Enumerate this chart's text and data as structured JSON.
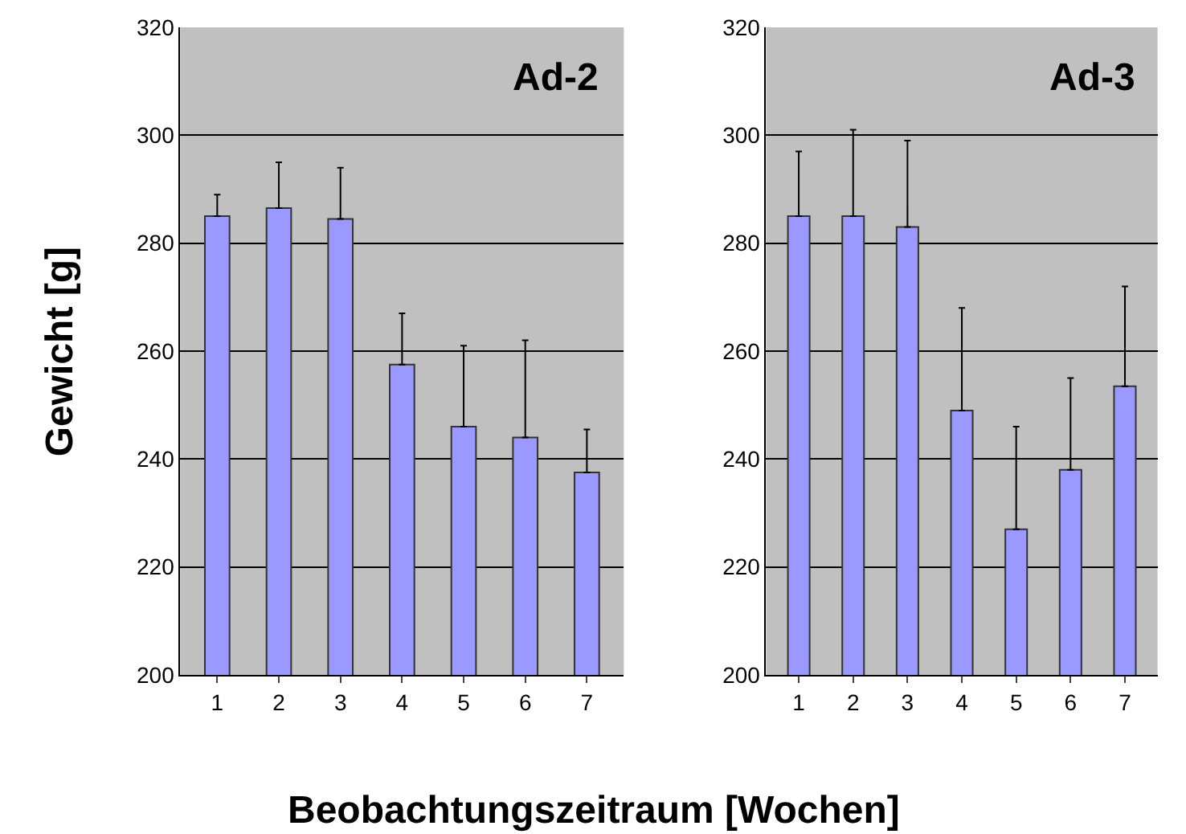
{
  "chart_data": [
    {
      "type": "bar",
      "annotations": [
        "Ad-2"
      ],
      "ylabel": "Gewicht [g]",
      "xlabel": "Beobachtungszeitraum [Wochen]",
      "categories": [
        "1",
        "2",
        "3",
        "4",
        "5",
        "6",
        "7"
      ],
      "series": [
        {
          "color": "#9999ff",
          "values": [
            285,
            286.5,
            284.5,
            257.5,
            246,
            244,
            237.5
          ],
          "errors": [
            [
              285,
              289
            ],
            [
              286.5,
              295
            ],
            [
              284.5,
              294
            ],
            [
              257.5,
              267
            ],
            [
              246,
              261
            ],
            [
              244,
              262
            ],
            [
              237.5,
              245.5
            ]
          ]
        }
      ],
      "ylim": [
        200,
        320
      ],
      "yticks": [
        200,
        220,
        240,
        260,
        280,
        300,
        320
      ],
      "grid": "y",
      "legend": false
    },
    {
      "type": "bar",
      "annotations": [
        "Ad-3"
      ],
      "categories": [
        "1",
        "2",
        "3",
        "4",
        "5",
        "6",
        "7"
      ],
      "series": [
        {
          "color": "#9999ff",
          "values": [
            285,
            285,
            283,
            249,
            227,
            238,
            253.5
          ],
          "errors": [
            [
              285,
              297
            ],
            [
              285,
              301
            ],
            [
              283,
              299
            ],
            [
              249,
              268
            ],
            [
              227,
              246
            ],
            [
              238,
              255
            ],
            [
              253.5,
              272
            ]
          ]
        }
      ],
      "ylim": [
        200,
        320
      ],
      "yticks": [
        200,
        220,
        240,
        260,
        280,
        300,
        320
      ],
      "grid": "y",
      "legend": false
    }
  ]
}
